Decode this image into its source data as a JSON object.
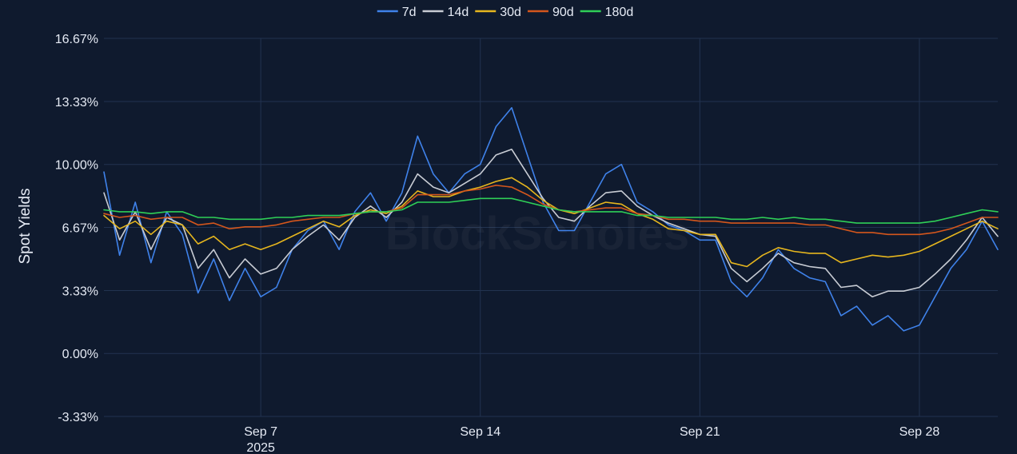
{
  "chart_data": {
    "type": "line",
    "ylabel": "Spot Yields",
    "ylim": [
      -3.33,
      16.67
    ],
    "yticks": [
      16.67,
      13.33,
      10.0,
      6.67,
      3.33,
      0.0,
      -3.33
    ],
    "ytick_labels": [
      "16.67%",
      "13.33%",
      "10.00%",
      "6.67%",
      "3.33%",
      "0.00%",
      "-3.33%"
    ],
    "x_range": [
      "2025-09-02",
      "2025-09-30T12:00"
    ],
    "xticks": [
      {
        "date": "2025-09-07",
        "label": "Sep 7",
        "sublabel": "2025"
      },
      {
        "date": "2025-09-14",
        "label": "Sep 14",
        "sublabel": ""
      },
      {
        "date": "2025-09-21",
        "label": "Sep 21",
        "sublabel": ""
      },
      {
        "date": "2025-09-28",
        "label": "Sep 28",
        "sublabel": ""
      }
    ],
    "grid": true,
    "legend_position": "top-center",
    "watermark": "BlockScholes",
    "series": [
      {
        "name": "7d",
        "color": "#3f82ea",
        "width": 1.6,
        "x": [
          "2025-09-02",
          "2025-09-02T12:00",
          "2025-09-03",
          "2025-09-03T12:00",
          "2025-09-04",
          "2025-09-04T12:00",
          "2025-09-05",
          "2025-09-05T12:00",
          "2025-09-06",
          "2025-09-06T12:00",
          "2025-09-07",
          "2025-09-07T12:00",
          "2025-09-08",
          "2025-09-08T12:00",
          "2025-09-09",
          "2025-09-09T12:00",
          "2025-09-10",
          "2025-09-10T12:00",
          "2025-09-11",
          "2025-09-11T12:00",
          "2025-09-12",
          "2025-09-12T12:00",
          "2025-09-13",
          "2025-09-13T12:00",
          "2025-09-14",
          "2025-09-14T12:00",
          "2025-09-15",
          "2025-09-15T12:00",
          "2025-09-16",
          "2025-09-16T12:00",
          "2025-09-17",
          "2025-09-17T12:00",
          "2025-09-18",
          "2025-09-18T12:00",
          "2025-09-19",
          "2025-09-19T12:00",
          "2025-09-20",
          "2025-09-20T12:00",
          "2025-09-21",
          "2025-09-21T12:00",
          "2025-09-22",
          "2025-09-22T12:00",
          "2025-09-23",
          "2025-09-23T12:00",
          "2025-09-24",
          "2025-09-24T12:00",
          "2025-09-25",
          "2025-09-25T12:00",
          "2025-09-26",
          "2025-09-26T12:00",
          "2025-09-27",
          "2025-09-27T12:00",
          "2025-09-28",
          "2025-09-28T12:00",
          "2025-09-29",
          "2025-09-29T12:00",
          "2025-09-30",
          "2025-09-30T12:00"
        ],
        "y": [
          9.6,
          5.2,
          8.0,
          4.8,
          7.5,
          6.3,
          3.2,
          5.0,
          2.8,
          4.5,
          3.0,
          3.5,
          5.5,
          6.5,
          7.0,
          5.5,
          7.5,
          8.5,
          7.0,
          8.5,
          11.5,
          9.5,
          8.5,
          9.5,
          10.0,
          12.0,
          13.0,
          10.5,
          8.0,
          6.5,
          6.5,
          8.0,
          9.5,
          10.0,
          8.0,
          7.5,
          6.8,
          6.5,
          6.0,
          6.0,
          3.8,
          3.0,
          4.0,
          5.5,
          4.5,
          4.0,
          3.8,
          2.0,
          2.5,
          1.5,
          2.0,
          1.2,
          1.5,
          3.0,
          4.5,
          5.5,
          7.0,
          5.5
        ]
      },
      {
        "name": "14d",
        "color": "#c8ccd4",
        "width": 1.6,
        "x": [
          "2025-09-02",
          "2025-09-02T12:00",
          "2025-09-03",
          "2025-09-03T12:00",
          "2025-09-04",
          "2025-09-04T12:00",
          "2025-09-05",
          "2025-09-05T12:00",
          "2025-09-06",
          "2025-09-06T12:00",
          "2025-09-07",
          "2025-09-07T12:00",
          "2025-09-08",
          "2025-09-08T12:00",
          "2025-09-09",
          "2025-09-09T12:00",
          "2025-09-10",
          "2025-09-10T12:00",
          "2025-09-11",
          "2025-09-11T12:00",
          "2025-09-12",
          "2025-09-12T12:00",
          "2025-09-13",
          "2025-09-13T12:00",
          "2025-09-14",
          "2025-09-14T12:00",
          "2025-09-15",
          "2025-09-15T12:00",
          "2025-09-16",
          "2025-09-16T12:00",
          "2025-09-17",
          "2025-09-17T12:00",
          "2025-09-18",
          "2025-09-18T12:00",
          "2025-09-19",
          "2025-09-19T12:00",
          "2025-09-20",
          "2025-09-20T12:00",
          "2025-09-21",
          "2025-09-21T12:00",
          "2025-09-22",
          "2025-09-22T12:00",
          "2025-09-23",
          "2025-09-23T12:00",
          "2025-09-24",
          "2025-09-24T12:00",
          "2025-09-25",
          "2025-09-25T12:00",
          "2025-09-26",
          "2025-09-26T12:00",
          "2025-09-27",
          "2025-09-27T12:00",
          "2025-09-28",
          "2025-09-28T12:00",
          "2025-09-29",
          "2025-09-29T12:00",
          "2025-09-30",
          "2025-09-30T12:00"
        ],
        "y": [
          8.5,
          6.0,
          7.5,
          5.5,
          7.2,
          6.8,
          4.5,
          5.5,
          4.0,
          5.0,
          4.2,
          4.5,
          5.5,
          6.2,
          6.8,
          6.0,
          7.2,
          7.8,
          7.2,
          8.0,
          9.5,
          8.8,
          8.5,
          9.0,
          9.5,
          10.5,
          10.8,
          9.5,
          8.2,
          7.2,
          7.0,
          7.8,
          8.5,
          8.6,
          7.8,
          7.3,
          6.9,
          6.6,
          6.3,
          6.2,
          4.5,
          3.8,
          4.5,
          5.3,
          4.8,
          4.6,
          4.5,
          3.5,
          3.6,
          3.0,
          3.3,
          3.3,
          3.5,
          4.2,
          5.0,
          6.0,
          7.2,
          6.2
        ]
      },
      {
        "name": "30d",
        "color": "#e6b61e",
        "width": 1.6,
        "x": [
          "2025-09-02",
          "2025-09-02T12:00",
          "2025-09-03",
          "2025-09-03T12:00",
          "2025-09-04",
          "2025-09-04T12:00",
          "2025-09-05",
          "2025-09-05T12:00",
          "2025-09-06",
          "2025-09-06T12:00",
          "2025-09-07",
          "2025-09-07T12:00",
          "2025-09-08",
          "2025-09-08T12:00",
          "2025-09-09",
          "2025-09-09T12:00",
          "2025-09-10",
          "2025-09-10T12:00",
          "2025-09-11",
          "2025-09-11T12:00",
          "2025-09-12",
          "2025-09-12T12:00",
          "2025-09-13",
          "2025-09-13T12:00",
          "2025-09-14",
          "2025-09-14T12:00",
          "2025-09-15",
          "2025-09-15T12:00",
          "2025-09-16",
          "2025-09-16T12:00",
          "2025-09-17",
          "2025-09-17T12:00",
          "2025-09-18",
          "2025-09-18T12:00",
          "2025-09-19",
          "2025-09-19T12:00",
          "2025-09-20",
          "2025-09-20T12:00",
          "2025-09-21",
          "2025-09-21T12:00",
          "2025-09-22",
          "2025-09-22T12:00",
          "2025-09-23",
          "2025-09-23T12:00",
          "2025-09-24",
          "2025-09-24T12:00",
          "2025-09-25",
          "2025-09-25T12:00",
          "2025-09-26",
          "2025-09-26T12:00",
          "2025-09-27",
          "2025-09-27T12:00",
          "2025-09-28",
          "2025-09-28T12:00",
          "2025-09-29",
          "2025-09-29T12:00",
          "2025-09-30",
          "2025-09-30T12:00"
        ],
        "y": [
          7.3,
          6.6,
          7.0,
          6.3,
          7.0,
          6.8,
          5.8,
          6.2,
          5.5,
          5.8,
          5.5,
          5.8,
          6.2,
          6.6,
          7.0,
          6.7,
          7.3,
          7.6,
          7.4,
          7.8,
          8.6,
          8.3,
          8.3,
          8.6,
          8.8,
          9.1,
          9.3,
          8.8,
          8.1,
          7.6,
          7.4,
          7.7,
          8.0,
          7.9,
          7.4,
          7.1,
          6.6,
          6.5,
          6.3,
          6.3,
          4.8,
          4.6,
          5.2,
          5.6,
          5.4,
          5.3,
          5.3,
          4.8,
          5.0,
          5.2,
          5.1,
          5.2,
          5.4,
          5.8,
          6.2,
          6.6,
          7.0,
          6.6
        ]
      },
      {
        "name": "90d",
        "color": "#d4561c",
        "width": 1.6,
        "x": [
          "2025-09-02",
          "2025-09-02T12:00",
          "2025-09-03",
          "2025-09-03T12:00",
          "2025-09-04",
          "2025-09-04T12:00",
          "2025-09-05",
          "2025-09-05T12:00",
          "2025-09-06",
          "2025-09-06T12:00",
          "2025-09-07",
          "2025-09-07T12:00",
          "2025-09-08",
          "2025-09-08T12:00",
          "2025-09-09",
          "2025-09-09T12:00",
          "2025-09-10",
          "2025-09-10T12:00",
          "2025-09-11",
          "2025-09-11T12:00",
          "2025-09-12",
          "2025-09-12T12:00",
          "2025-09-13",
          "2025-09-13T12:00",
          "2025-09-14",
          "2025-09-14T12:00",
          "2025-09-15",
          "2025-09-15T12:00",
          "2025-09-16",
          "2025-09-16T12:00",
          "2025-09-17",
          "2025-09-17T12:00",
          "2025-09-18",
          "2025-09-18T12:00",
          "2025-09-19",
          "2025-09-19T12:00",
          "2025-09-20",
          "2025-09-20T12:00",
          "2025-09-21",
          "2025-09-21T12:00",
          "2025-09-22",
          "2025-09-22T12:00",
          "2025-09-23",
          "2025-09-23T12:00",
          "2025-09-24",
          "2025-09-24T12:00",
          "2025-09-25",
          "2025-09-25T12:00",
          "2025-09-26",
          "2025-09-26T12:00",
          "2025-09-27",
          "2025-09-27T12:00",
          "2025-09-28",
          "2025-09-28T12:00",
          "2025-09-29",
          "2025-09-29T12:00",
          "2025-09-30",
          "2025-09-30T12:00"
        ],
        "y": [
          7.4,
          7.2,
          7.3,
          7.1,
          7.2,
          7.2,
          6.8,
          6.9,
          6.6,
          6.7,
          6.7,
          6.8,
          7.0,
          7.1,
          7.2,
          7.2,
          7.4,
          7.5,
          7.5,
          7.7,
          8.4,
          8.4,
          8.4,
          8.6,
          8.7,
          8.9,
          8.8,
          8.4,
          7.9,
          7.6,
          7.5,
          7.6,
          7.7,
          7.7,
          7.4,
          7.3,
          7.1,
          7.1,
          7.0,
          7.0,
          6.9,
          6.9,
          6.9,
          6.9,
          6.9,
          6.8,
          6.8,
          6.6,
          6.4,
          6.4,
          6.3,
          6.3,
          6.3,
          6.4,
          6.6,
          6.9,
          7.2,
          7.2
        ]
      },
      {
        "name": "180d",
        "color": "#2fcf57",
        "width": 1.6,
        "x": [
          "2025-09-02",
          "2025-09-02T12:00",
          "2025-09-03",
          "2025-09-03T12:00",
          "2025-09-04",
          "2025-09-04T12:00",
          "2025-09-05",
          "2025-09-05T12:00",
          "2025-09-06",
          "2025-09-06T12:00",
          "2025-09-07",
          "2025-09-07T12:00",
          "2025-09-08",
          "2025-09-08T12:00",
          "2025-09-09",
          "2025-09-09T12:00",
          "2025-09-10",
          "2025-09-10T12:00",
          "2025-09-11",
          "2025-09-11T12:00",
          "2025-09-12",
          "2025-09-12T12:00",
          "2025-09-13",
          "2025-09-13T12:00",
          "2025-09-14",
          "2025-09-14T12:00",
          "2025-09-15",
          "2025-09-15T12:00",
          "2025-09-16",
          "2025-09-16T12:00",
          "2025-09-17",
          "2025-09-17T12:00",
          "2025-09-18",
          "2025-09-18T12:00",
          "2025-09-19",
          "2025-09-19T12:00",
          "2025-09-20",
          "2025-09-20T12:00",
          "2025-09-21",
          "2025-09-21T12:00",
          "2025-09-22",
          "2025-09-22T12:00",
          "2025-09-23",
          "2025-09-23T12:00",
          "2025-09-24",
          "2025-09-24T12:00",
          "2025-09-25",
          "2025-09-25T12:00",
          "2025-09-26",
          "2025-09-26T12:00",
          "2025-09-27",
          "2025-09-27T12:00",
          "2025-09-28",
          "2025-09-28T12:00",
          "2025-09-29",
          "2025-09-29T12:00",
          "2025-09-30",
          "2025-09-30T12:00"
        ],
        "y": [
          7.6,
          7.5,
          7.5,
          7.4,
          7.5,
          7.5,
          7.2,
          7.2,
          7.1,
          7.1,
          7.1,
          7.2,
          7.2,
          7.3,
          7.3,
          7.3,
          7.4,
          7.5,
          7.5,
          7.6,
          8.0,
          8.0,
          8.0,
          8.1,
          8.2,
          8.2,
          8.2,
          8.0,
          7.8,
          7.6,
          7.5,
          7.5,
          7.5,
          7.5,
          7.3,
          7.3,
          7.2,
          7.2,
          7.2,
          7.2,
          7.1,
          7.1,
          7.2,
          7.1,
          7.2,
          7.1,
          7.1,
          7.0,
          6.9,
          6.9,
          6.9,
          6.9,
          6.9,
          7.0,
          7.2,
          7.4,
          7.6,
          7.5
        ]
      }
    ]
  }
}
